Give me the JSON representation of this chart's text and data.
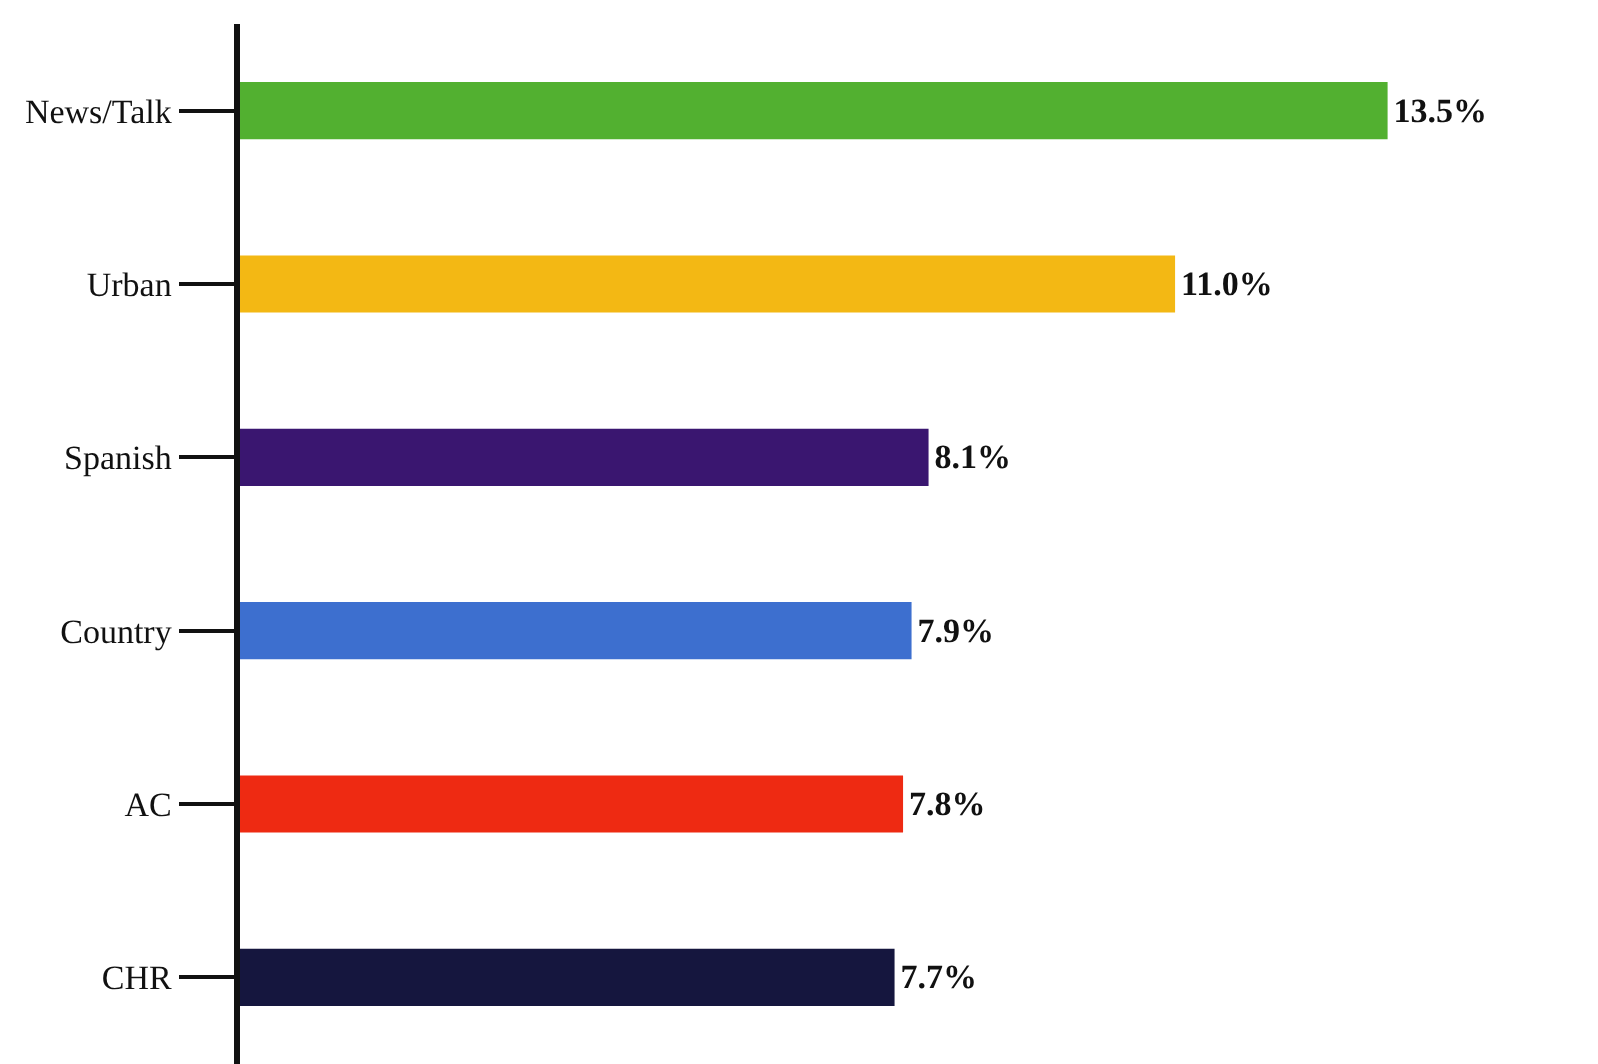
{
  "chart_data": {
    "type": "bar",
    "orientation": "horizontal",
    "categories": [
      "News/Talk",
      "Urban",
      "Spanish",
      "Country",
      "AC",
      "CHR"
    ],
    "values": [
      13.5,
      11.0,
      8.1,
      7.9,
      7.8,
      7.7
    ],
    "colors": [
      "#52b030",
      "#f3b814",
      "#3a1670",
      "#3d6fcf",
      "#ee2a12",
      "#15163e"
    ],
    "value_labels": [
      "13.5%",
      "11.0%",
      "8.1%",
      "7.9%",
      "7.8%",
      "7.7%"
    ],
    "tick_labels": "y"
  }
}
